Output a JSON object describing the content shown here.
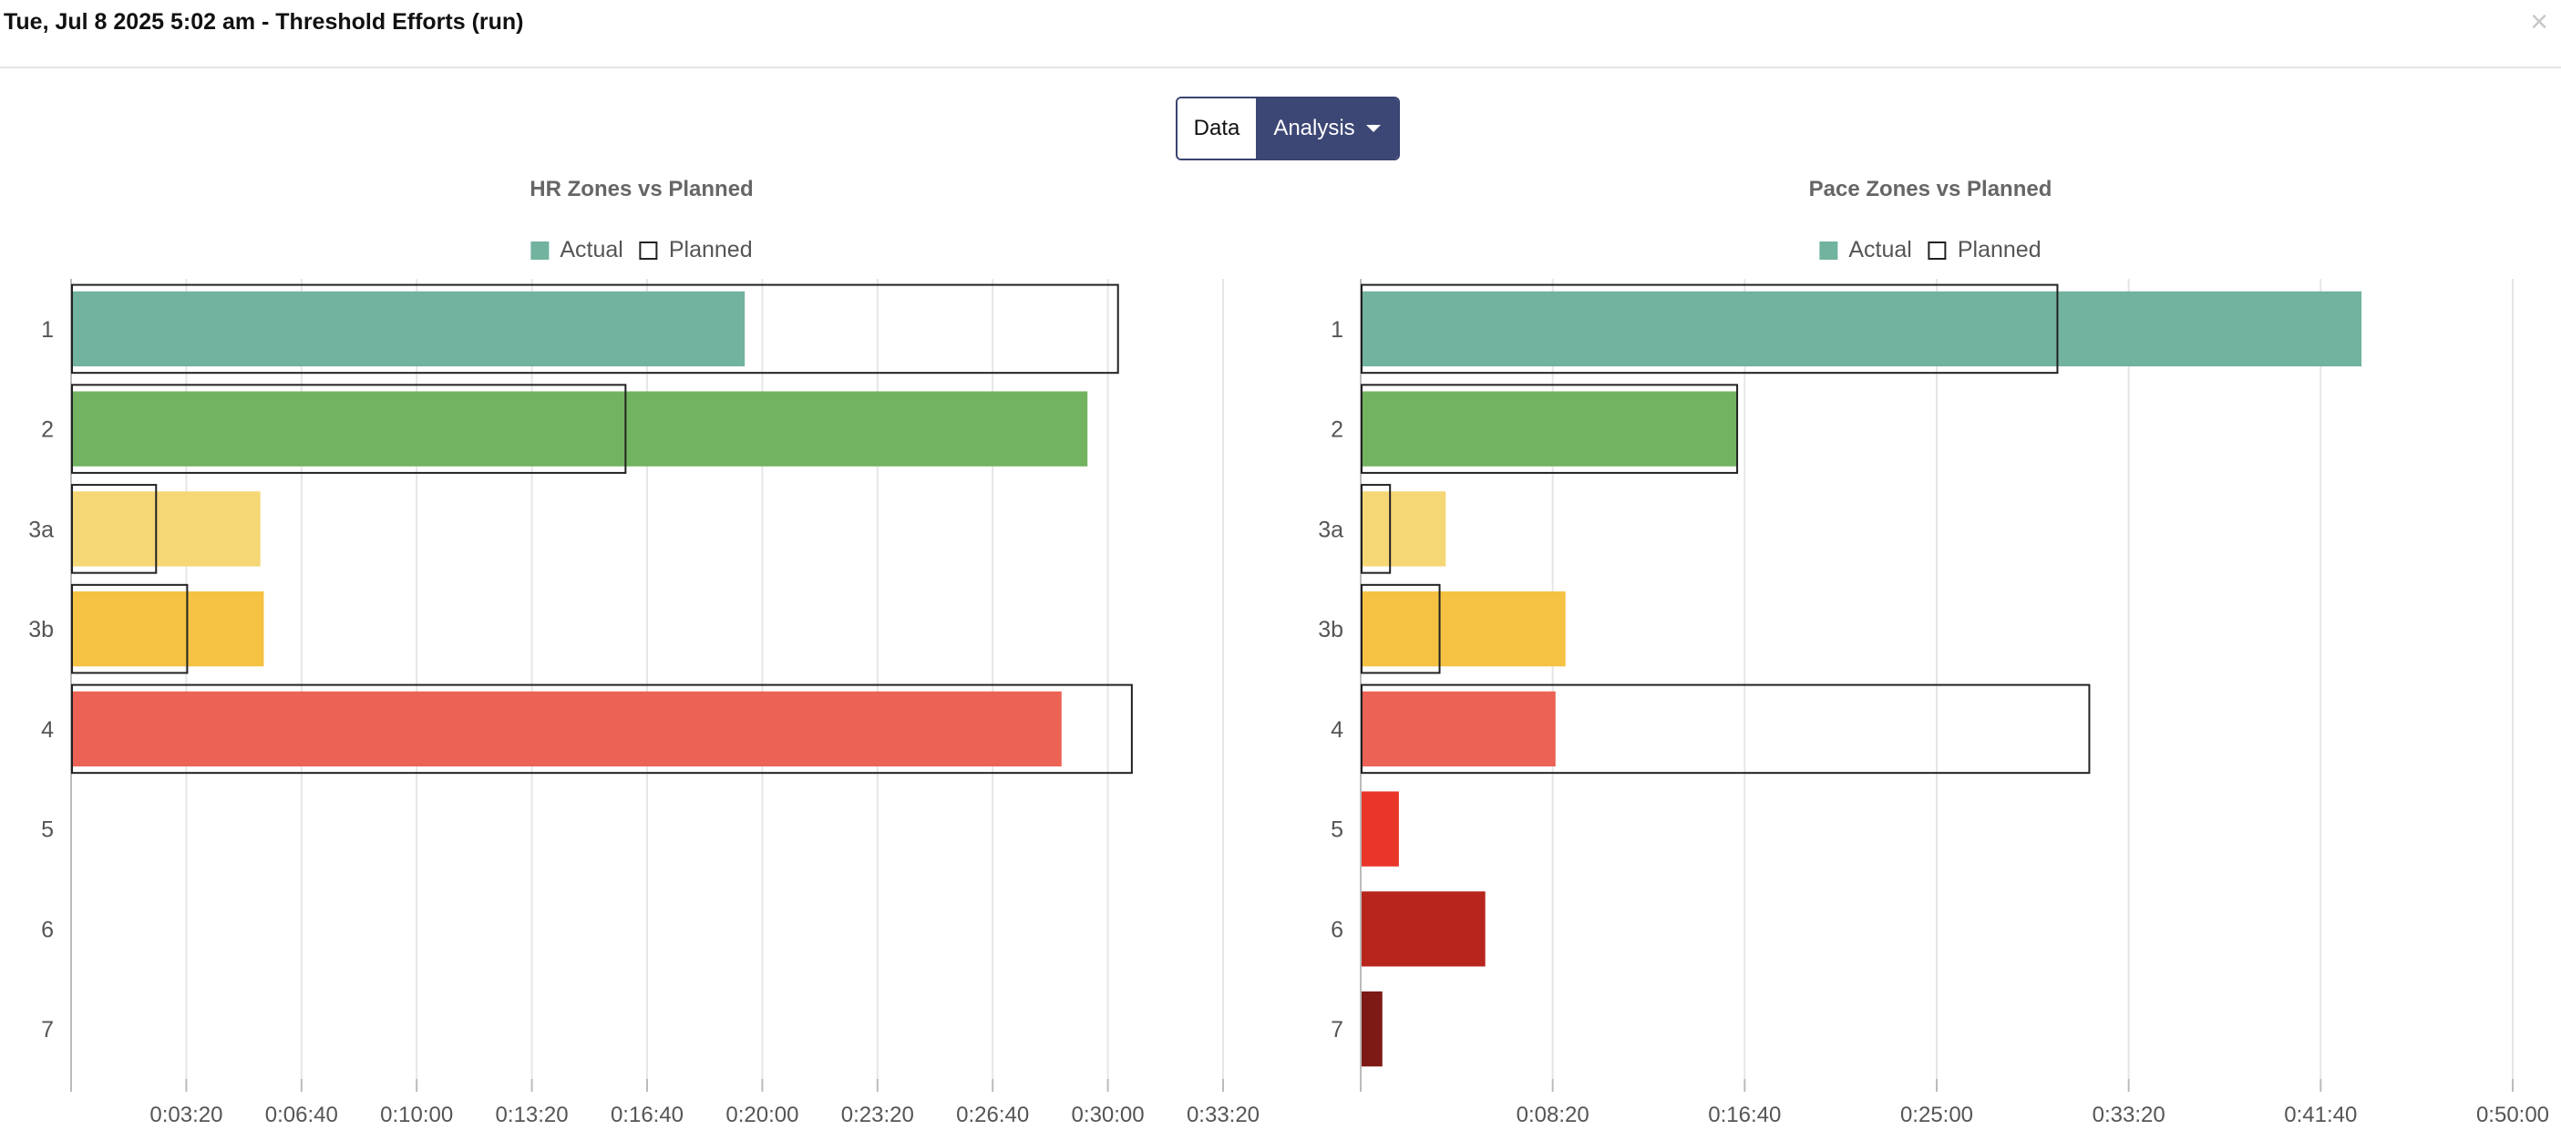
{
  "window": {
    "title": "Tue, Jul 8 2025 5:02 am - Threshold Efforts (run)",
    "close_glyph": "×"
  },
  "view_toggle": {
    "data_label": "Data",
    "analysis_label": "Analysis",
    "selected": "Analysis"
  },
  "legend": {
    "actual_label": "Actual",
    "planned_label": "Planned"
  },
  "colors": {
    "actual_zone_1": "#72b3a0",
    "actual_zone_2": "#72b361",
    "actual_zone_3a": "#f6d776",
    "actual_zone_3b": "#f5c243",
    "actual_zone_4": "#ec6254",
    "actual_zone_5": "#e9352a",
    "actual_zone_6": "#b8251d",
    "actual_zone_7": "#7d1a15",
    "planned_outline": "#222222",
    "grid": "#e6e6e6",
    "toggle_selected": "#3d4775"
  },
  "chart_data": [
    {
      "type": "bar",
      "orientation": "horizontal",
      "title": "HR Zones vs Planned",
      "categories": [
        "1",
        "2",
        "3a",
        "3b",
        "4",
        "5",
        "6",
        "7"
      ],
      "x_ticks": [
        "0:03:20",
        "0:06:40",
        "0:10:00",
        "0:13:20",
        "0:16:40",
        "0:20:00",
        "0:23:20",
        "0:26:40",
        "0:30:00",
        "0:33:20"
      ],
      "xlim": [
        0,
        2000
      ],
      "x_unit": "seconds",
      "grid": true,
      "legend_position": "top-center",
      "series": [
        {
          "name": "Actual",
          "values": [
            1168,
            1763,
            327,
            333,
            1718,
            0,
            0,
            0
          ]
        },
        {
          "name": "Planned",
          "values": [
            1816,
            961,
            146,
            200,
            1840,
            0,
            0,
            0
          ]
        }
      ]
    },
    {
      "type": "bar",
      "orientation": "horizontal",
      "title": "Pace Zones vs Planned",
      "categories": [
        "1",
        "2",
        "3a",
        "3b",
        "4",
        "5",
        "6",
        "7"
      ],
      "x_ticks": [
        "0:08:20",
        "0:16:40",
        "0:25:00",
        "0:33:20",
        "0:41:40",
        "0:50:00"
      ],
      "xlim": [
        0,
        3000
      ],
      "x_unit": "seconds",
      "grid": true,
      "legend_position": "top-center",
      "series": [
        {
          "name": "Actual",
          "values": [
            2604,
            978,
            219,
            531,
            505,
            97,
            322,
            54
          ]
        },
        {
          "name": "Planned",
          "values": [
            1812,
            978,
            74,
            203,
            1895,
            0,
            0,
            0
          ]
        }
      ]
    }
  ]
}
